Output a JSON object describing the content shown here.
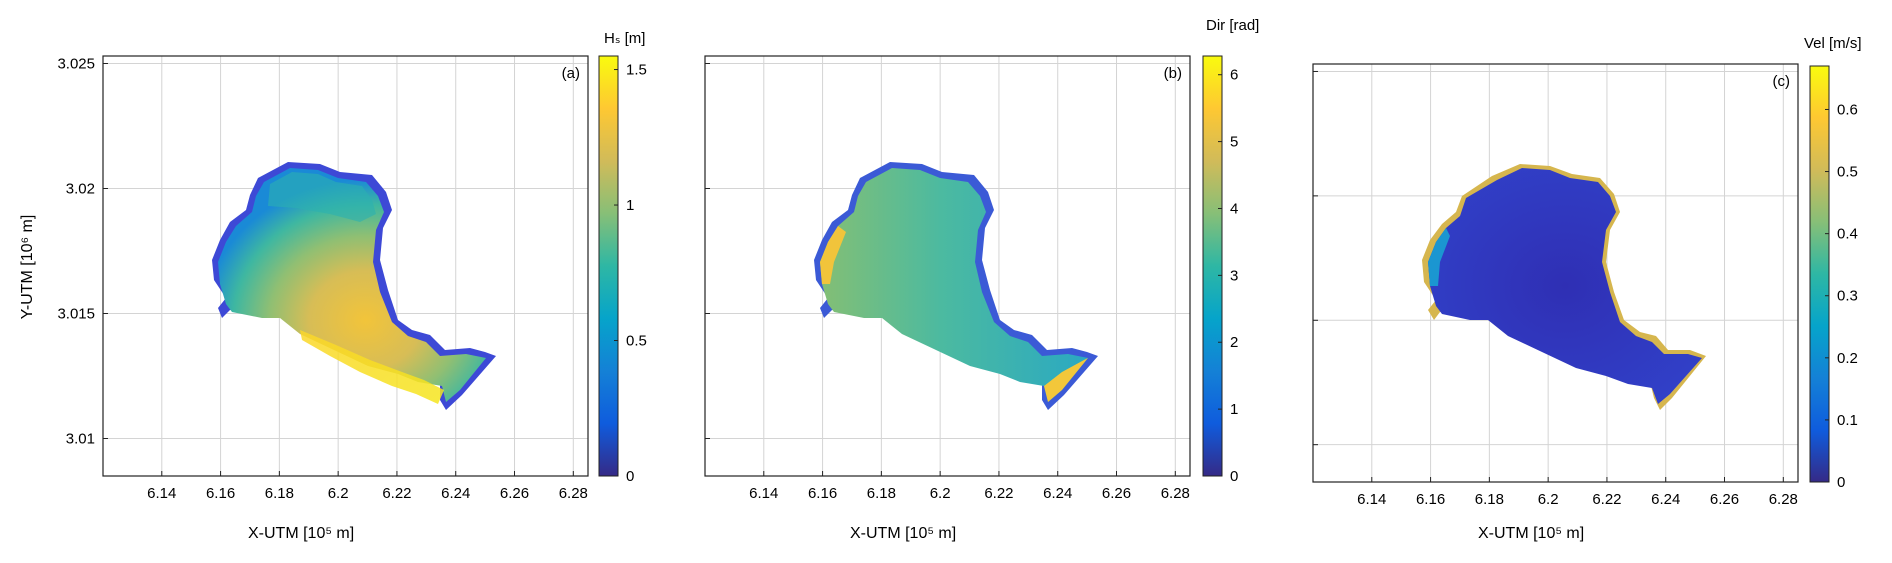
{
  "figure": {
    "ylabel": "Y-UTM [10⁶ m]",
    "xlabel": "X-UTM [10⁵ m]"
  },
  "chart_data": [
    {
      "type": "heatmap",
      "panel_label": "(a)",
      "colorbar_label": "Hₛ [m]",
      "colorbar_ticks": [
        "0",
        "0.5",
        "1",
        "1.5"
      ],
      "clim": [
        0,
        1.55
      ],
      "xlim": [
        6.12,
        6.285
      ],
      "ylim": [
        3.0085,
        3.0253
      ],
      "xticks": [
        "6.14",
        "6.16",
        "6.18",
        "6.2",
        "6.22",
        "6.24",
        "6.26",
        "6.28"
      ],
      "yticks": [
        "3.01",
        "3.015",
        "3.02",
        "3.025"
      ],
      "grid": true,
      "field_note_values": {
        "center_max": 1.45,
        "shore_min": 0.1
      }
    },
    {
      "type": "heatmap",
      "panel_label": "(b)",
      "colorbar_label": "Dir [rad]",
      "colorbar_ticks": [
        "0",
        "1",
        "2",
        "3",
        "4",
        "5",
        "6"
      ],
      "clim": [
        0,
        6.28
      ],
      "xlim": [
        6.12,
        6.285
      ],
      "ylim": [
        3.0085,
        3.0253
      ],
      "xticks": [
        "6.14",
        "6.16",
        "6.18",
        "6.2",
        "6.22",
        "6.24",
        "6.26",
        "6.28"
      ],
      "yticks": [],
      "grid": true,
      "field_note_values": {
        "interior": 3.3,
        "east_shore": 2.3,
        "west_shore": 4.8
      }
    },
    {
      "type": "heatmap",
      "panel_label": "(c)",
      "colorbar_label": "Vel [m/s]",
      "colorbar_ticks": [
        "0",
        "0.1",
        "0.2",
        "0.3",
        "0.4",
        "0.5",
        "0.6"
      ],
      "clim": [
        0,
        0.67
      ],
      "xlim": [
        6.12,
        6.285
      ],
      "ylim": [
        3.0085,
        3.0253
      ],
      "xticks": [
        "6.14",
        "6.16",
        "6.18",
        "6.2",
        "6.22",
        "6.24",
        "6.26",
        "6.28"
      ],
      "yticks": [],
      "grid": true,
      "field_note_values": {
        "interior": 0.03,
        "shoreline": 0.45
      }
    }
  ]
}
